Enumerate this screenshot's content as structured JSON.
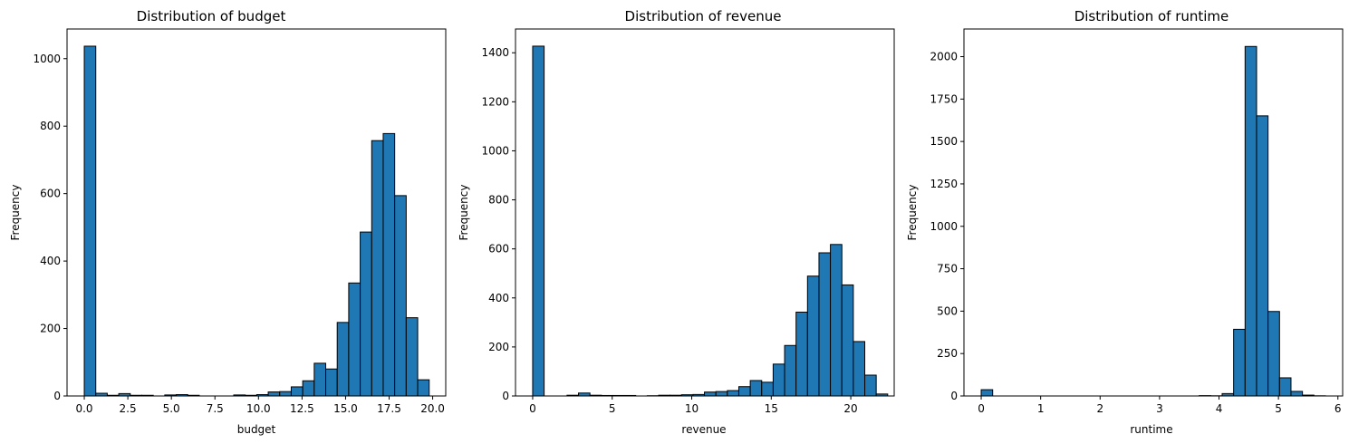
{
  "chart_data": [
    {
      "type": "bar",
      "title": "Distribution of budget",
      "xlabel": "budget",
      "ylabel": "Frequency",
      "xlim": [
        -0.99,
        20.75
      ],
      "ylim": [
        0,
        1088
      ],
      "xticks": [
        0.0,
        2.5,
        5.0,
        7.5,
        10.0,
        12.5,
        15.0,
        17.5,
        20.0
      ],
      "xtick_labels": [
        "0.0",
        "2.5",
        "5.0",
        "7.5",
        "10.0",
        "12.5",
        "15.0",
        "17.5",
        "20.0"
      ],
      "yticks": [
        0,
        200,
        400,
        600,
        800,
        1000
      ],
      "ytick_labels": [
        "0",
        "200",
        "400",
        "600",
        "800",
        "1000"
      ],
      "bin_start": 0,
      "bin_width": 0.66,
      "values": [
        1037,
        8,
        2,
        7,
        2,
        2,
        0,
        3,
        4,
        2,
        0,
        0,
        0,
        3,
        2,
        4,
        12,
        13,
        27,
        45,
        97,
        80,
        218,
        335,
        486,
        757,
        778,
        594,
        232,
        48
      ]
    },
    {
      "type": "bar",
      "title": "Distribution of revenue",
      "xlabel": "revenue",
      "ylabel": "Frequency",
      "xlim": [
        -1.08,
        22.73
      ],
      "ylim": [
        0,
        1497
      ],
      "xticks": [
        0,
        5,
        10,
        15,
        20
      ],
      "xtick_labels": [
        "0",
        "5",
        "10",
        "15",
        "20"
      ],
      "yticks": [
        0,
        200,
        400,
        600,
        800,
        1000,
        1200,
        1400
      ],
      "ytick_labels": [
        "0",
        "200",
        "400",
        "600",
        "800",
        "1000",
        "1200",
        "1400"
      ],
      "bin_start": 0,
      "bin_width": 0.72,
      "values": [
        1427,
        0,
        0,
        3,
        12,
        3,
        2,
        2,
        2,
        0,
        1,
        3,
        3,
        5,
        6,
        16,
        18,
        22,
        38,
        63,
        56,
        130,
        206,
        342,
        489,
        584,
        618,
        453,
        222,
        85,
        8
      ]
    },
    {
      "type": "bar",
      "title": "Distribution of runtime",
      "xlabel": "runtime",
      "ylabel": "Frequency",
      "xlim": [
        -0.29,
        6.08
      ],
      "ylim": [
        0,
        2163
      ],
      "xticks": [
        0,
        1,
        2,
        3,
        4,
        5,
        6
      ],
      "xtick_labels": [
        "0",
        "1",
        "2",
        "3",
        "4",
        "5",
        "6"
      ],
      "yticks": [
        0,
        250,
        500,
        750,
        1000,
        1250,
        1500,
        1750,
        2000
      ],
      "ytick_labels": [
        "0",
        "250",
        "500",
        "750",
        "1000",
        "1250",
        "1500",
        "1750",
        "2000"
      ],
      "bin_start": 0,
      "bin_width": 0.193,
      "values": [
        37,
        0,
        0,
        0,
        0,
        0,
        0,
        0,
        0,
        0,
        0,
        0,
        0,
        0,
        0,
        0,
        0,
        0,
        0,
        2,
        1,
        14,
        393,
        2060,
        1651,
        498,
        107,
        27,
        5,
        1
      ]
    }
  ]
}
